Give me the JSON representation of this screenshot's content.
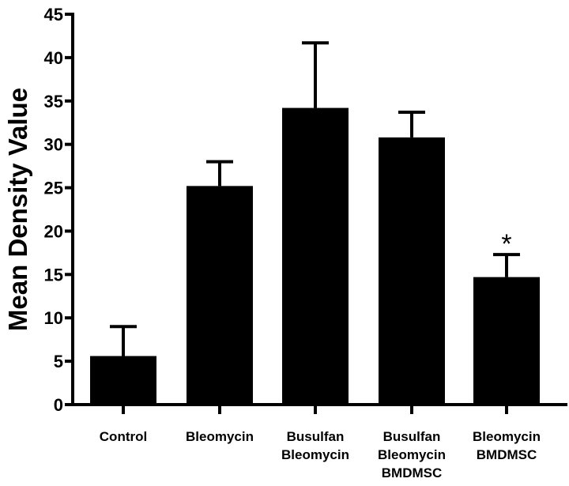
{
  "chart_data": {
    "type": "bar",
    "title": "",
    "xlabel": "",
    "ylabel": "Mean Density Value",
    "ylim": [
      0,
      45
    ],
    "yticks": [
      0,
      5,
      10,
      15,
      20,
      25,
      30,
      35,
      40,
      45
    ],
    "grid": false,
    "bar_color": "#000000",
    "categories": [
      [
        "Control"
      ],
      [
        "Bleomycin"
      ],
      [
        "Busulfan",
        "Bleomycin"
      ],
      [
        "Busulfan",
        "Bleomycin",
        "BMDMSC"
      ],
      [
        "Bleomycin",
        "BMDMSC"
      ]
    ],
    "values": [
      5.6,
      25.2,
      34.2,
      30.8,
      14.7
    ],
    "error_upper": [
      9.0,
      28.0,
      41.7,
      33.7,
      17.3
    ],
    "annotations": [
      {
        "category_index": 4,
        "text": "*"
      }
    ]
  }
}
